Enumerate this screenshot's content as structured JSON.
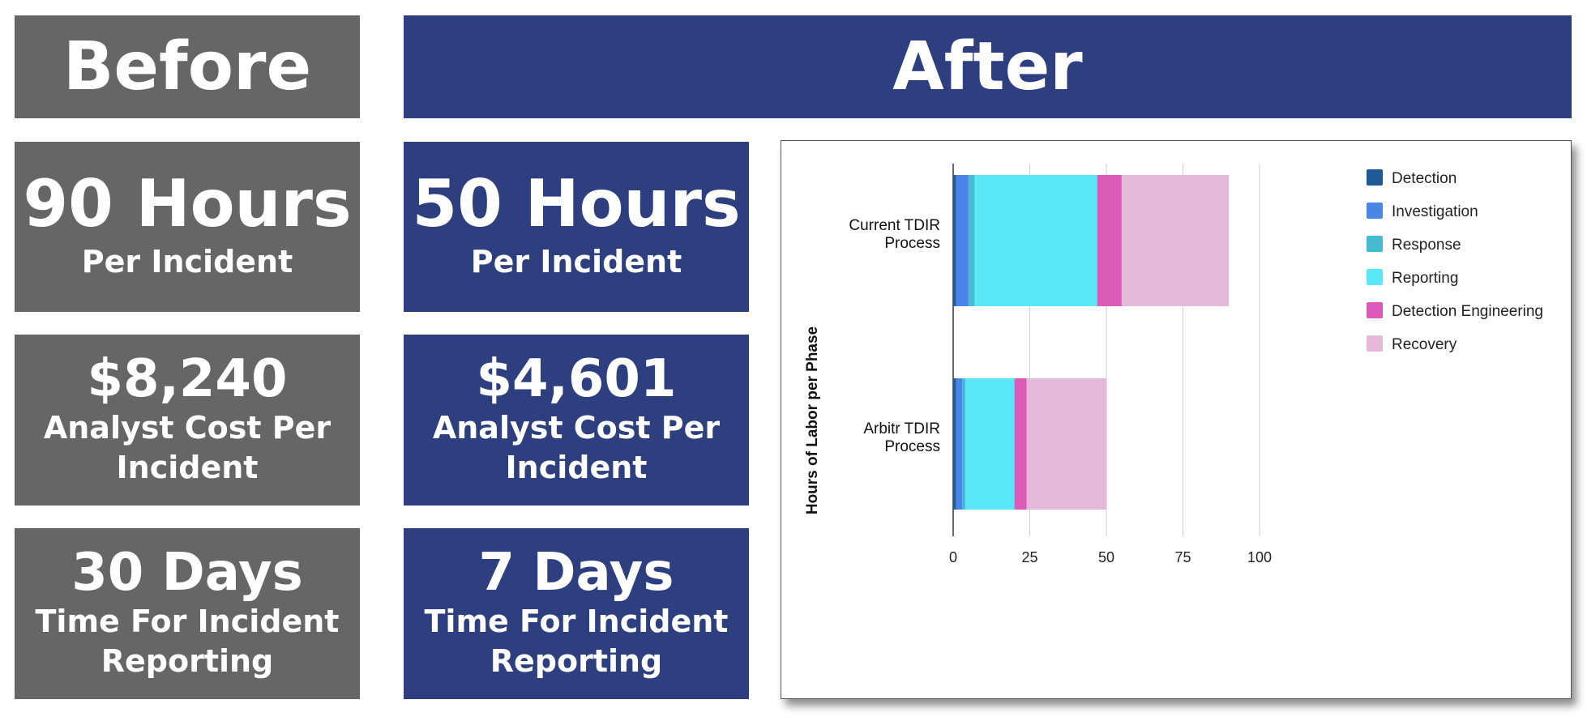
{
  "headers": {
    "before": "Before",
    "after": "After"
  },
  "before": {
    "hours": {
      "value": "90 Hours",
      "label": "Per Incident"
    },
    "cost": {
      "value": "$8,240",
      "label_line1": "Analyst Cost Per",
      "label_line2": "Incident"
    },
    "days": {
      "value": "30 Days",
      "label_line1": "Time For Incident",
      "label_line2": "Reporting"
    }
  },
  "after": {
    "hours": {
      "value": "50 Hours",
      "label": "Per Incident"
    },
    "cost": {
      "value": "$4,601",
      "label_line1": "Analyst Cost Per",
      "label_line2": "Incident"
    },
    "days": {
      "value": "7 Days",
      "label_line1": "Time For Incident",
      "label_line2": "Reporting"
    }
  },
  "colors": {
    "before_gray": "#666666",
    "after_navy": "#2d3f7e"
  },
  "chart_data": {
    "type": "bar",
    "orientation": "horizontal",
    "stacked": true,
    "title": "",
    "xlabel": "",
    "ylabel": "Hours of Labor per Phase",
    "categories": [
      [
        "Current TDIR",
        "Process"
      ],
      [
        "Arbitr TDIR",
        "Process"
      ]
    ],
    "series": [
      {
        "name": "Detection",
        "color": "#1f5a96",
        "values": [
          1,
          1
        ]
      },
      {
        "name": "Investigation",
        "color": "#4a86e8",
        "values": [
          4,
          2
        ]
      },
      {
        "name": "Response",
        "color": "#45bcd0",
        "values": [
          2,
          1
        ]
      },
      {
        "name": "Reporting",
        "color": "#58e8f8",
        "values": [
          40,
          16
        ]
      },
      {
        "name": "Detection Engineering",
        "color": "#dc5ab8",
        "values": [
          8,
          4
        ]
      },
      {
        "name": "Recovery",
        "color": "#e4b8d8",
        "values": [
          35,
          26
        ]
      }
    ],
    "xlim": [
      0,
      100
    ],
    "xticks": [
      0,
      25,
      50,
      75,
      100
    ],
    "grid": "vertical",
    "legend_position": "right"
  }
}
